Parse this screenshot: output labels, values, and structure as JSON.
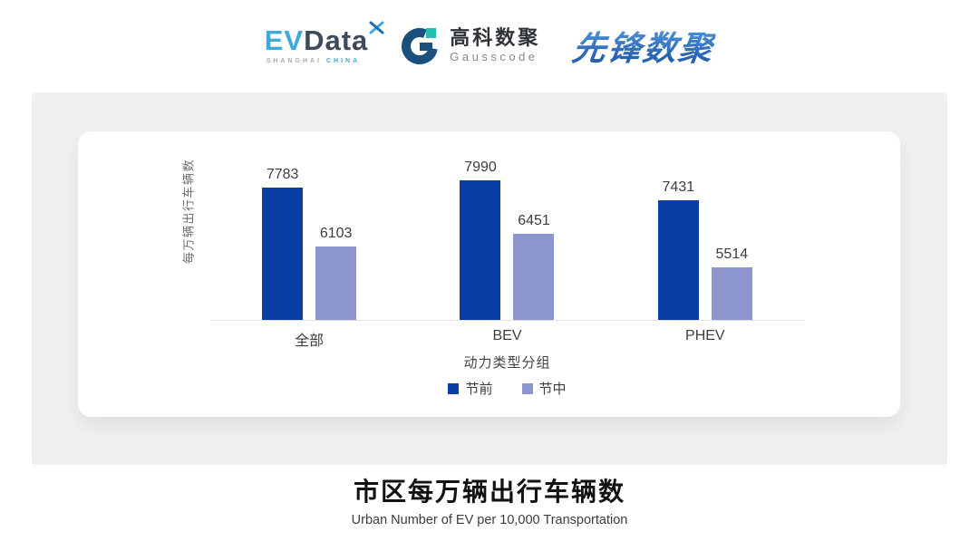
{
  "header": {
    "evdata": {
      "ev": "EV",
      "data": "Data",
      "sub_left": "SHANGHAI",
      "sub_right": "CHINA"
    },
    "gausscode": {
      "cn": "高科数聚",
      "en": "Gausscode"
    },
    "xianfeng": {
      "text": "先锋数聚"
    }
  },
  "chart_data": {
    "type": "bar",
    "categories": [
      "全部",
      "BEV",
      "PHEV"
    ],
    "series": [
      {
        "name": "节前",
        "color": "#0a3ea6",
        "values": [
          7783,
          7990,
          7431
        ]
      },
      {
        "name": "节中",
        "color": "#8c96cd",
        "values": [
          6103,
          6451,
          5514
        ]
      }
    ],
    "title": "市区每万辆出行车辆数",
    "xlabel": "动力类型分组",
    "ylabel": "每万辆出行车辆数",
    "ylim": [
      4000,
      8200
    ],
    "grid": false,
    "legend_position": "bottom",
    "value_labels": true
  },
  "footer": {
    "title": "市区每万辆出行车辆数",
    "subtitle": "Urban Number of EV per 10,000 Transportation"
  }
}
